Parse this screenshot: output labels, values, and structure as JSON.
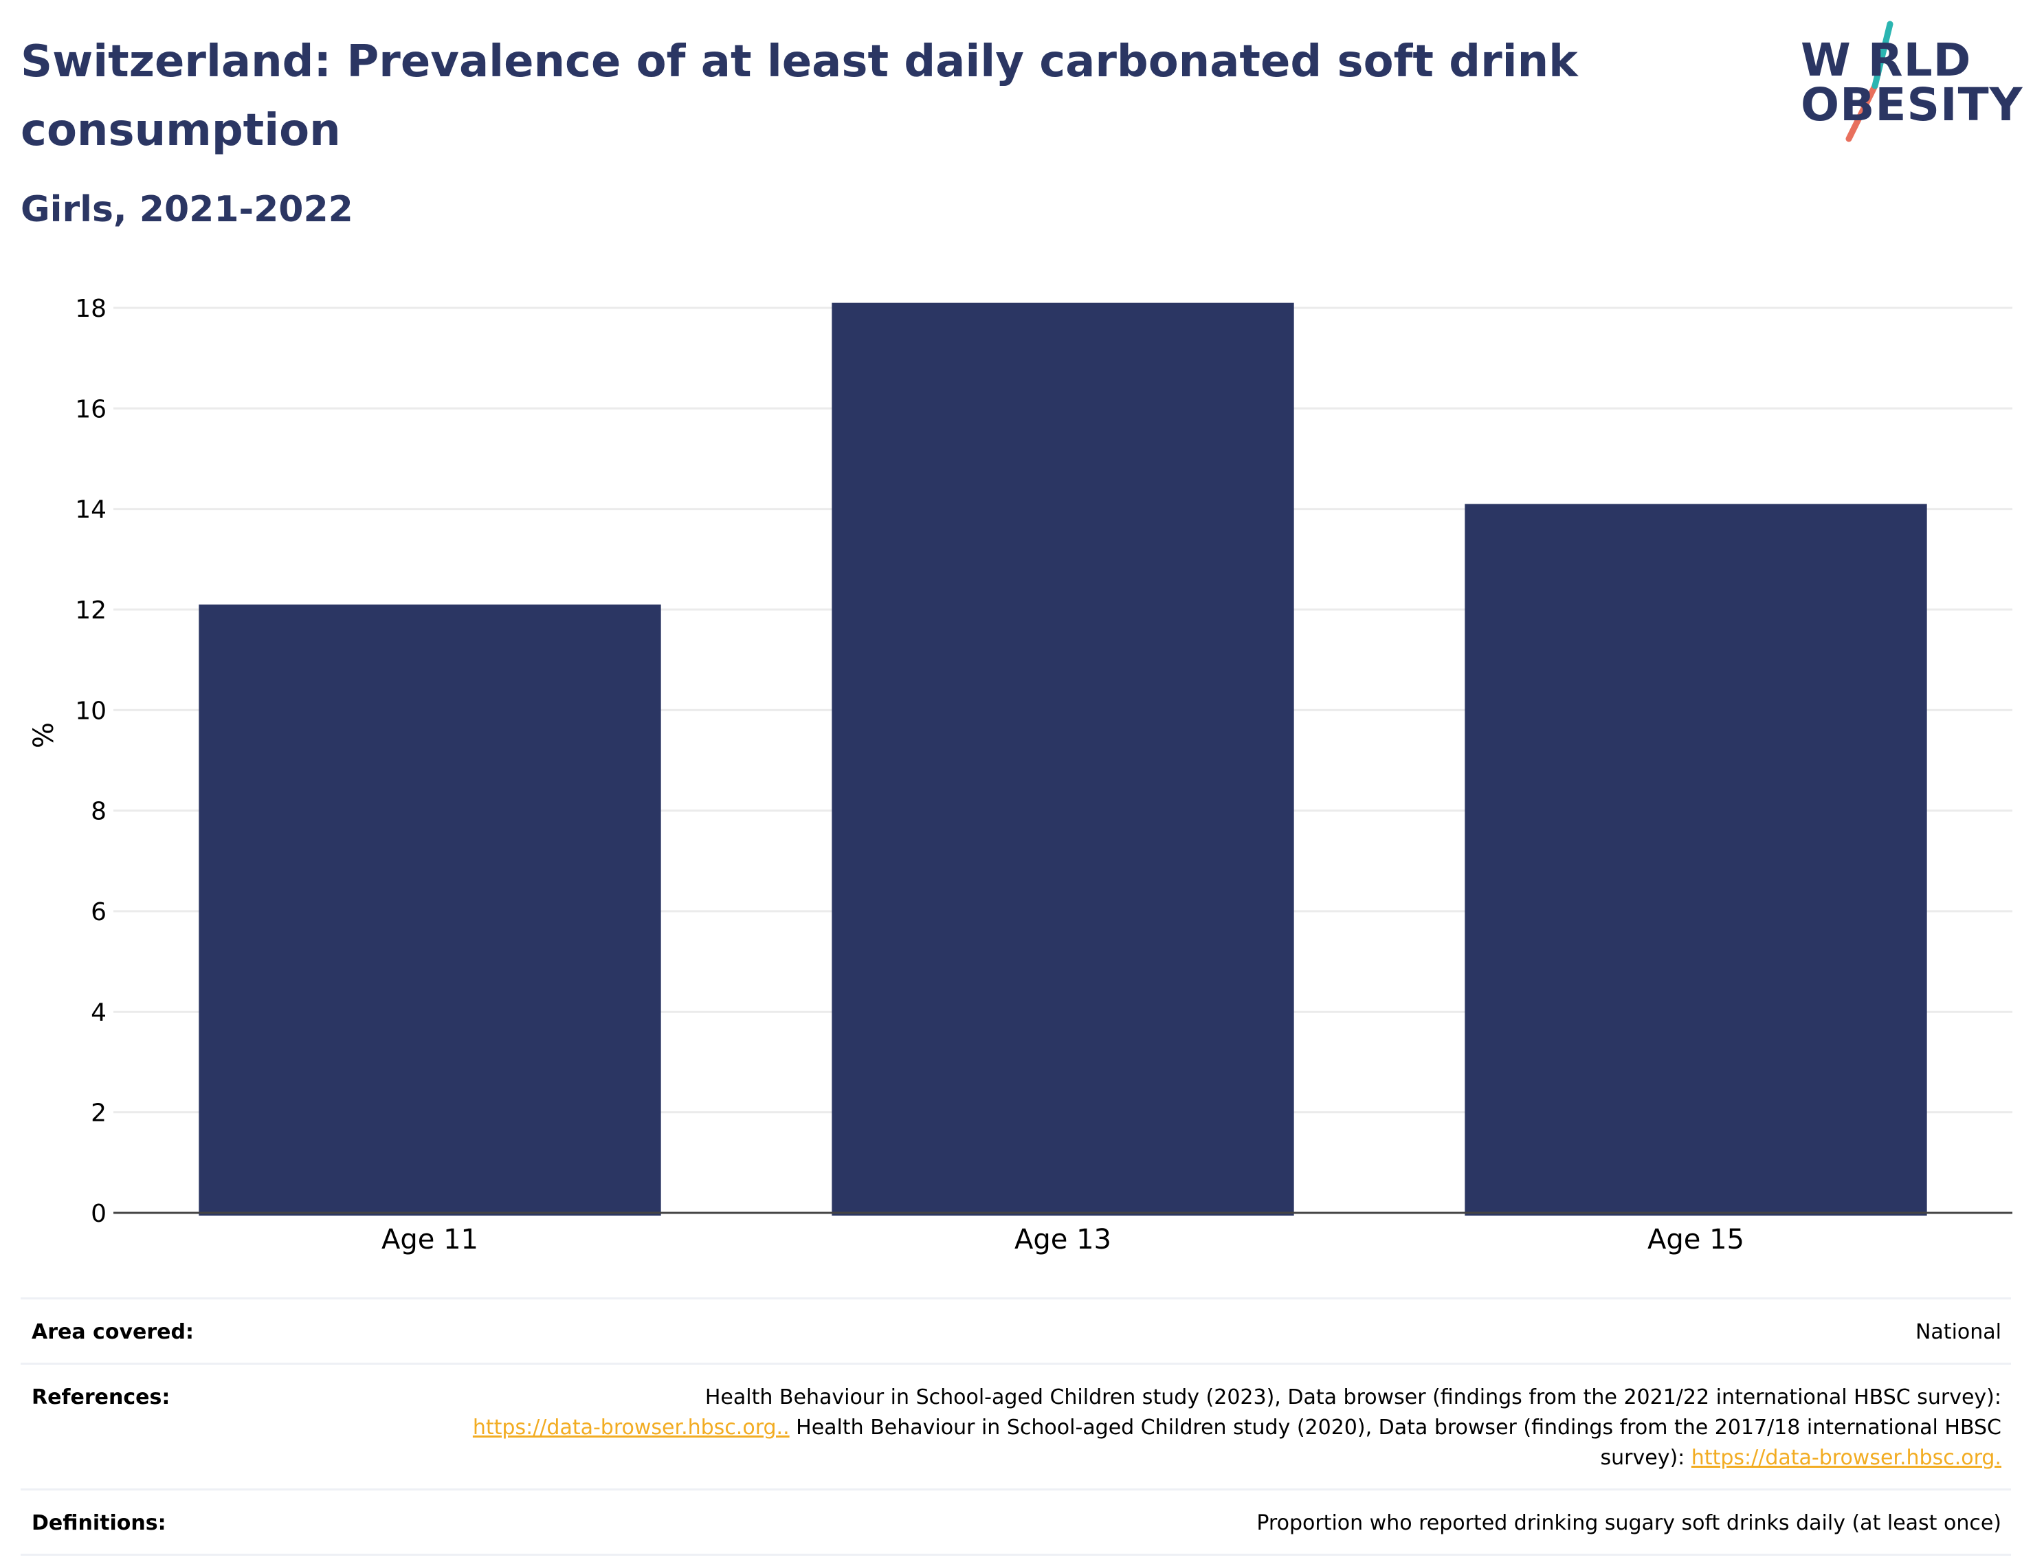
{
  "header": {
    "title": "Switzerland: Prevalence of at least daily carbonated soft drink consumption",
    "subtitle": "Girls, 2021-2022"
  },
  "logo": {
    "line1": "W RLD",
    "line2": "OBESITY",
    "colors": {
      "text": "#2b3663",
      "teal": "#2bb5b1",
      "coral": "#e8705d"
    }
  },
  "chart_data": {
    "type": "bar",
    "categories": [
      "Age 11",
      "Age 13",
      "Age 15"
    ],
    "values": [
      12.1,
      18.1,
      14.1
    ],
    "ylabel": "%",
    "xlabel": "",
    "ylim": [
      0,
      18.5
    ],
    "yticks": [
      0,
      2,
      4,
      6,
      8,
      10,
      12,
      14,
      16,
      18
    ],
    "grid": true,
    "bar_color": "#2b3663"
  },
  "info": {
    "area_label": "Area covered:",
    "area_value": "National",
    "references_label": "References:",
    "ref_text1": "Health Behaviour in School-aged Children study (2023), Data browser (findings from the 2021/22 international HBSC survey):",
    "ref_link1": "https://data-browser.hbsc.org..",
    "ref_text2": " Health Behaviour in School-aged Children study (2020), Data browser (findings from the 2017/18 international HBSC survey): ",
    "ref_link2": "https://data-browser.hbsc.org.",
    "definitions_label": "Definitions:",
    "definitions_value": "Proportion who reported drinking sugary soft drinks daily (at least once)"
  }
}
